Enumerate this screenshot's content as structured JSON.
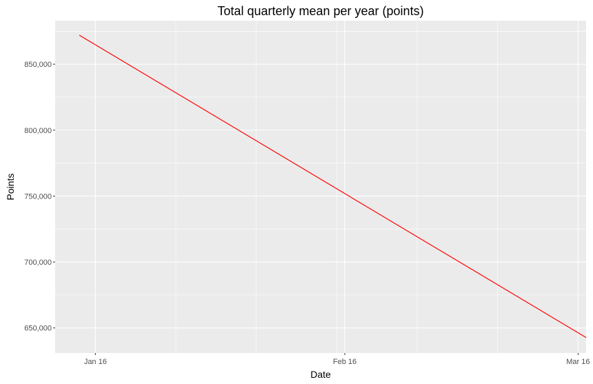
{
  "chart_data": {
    "type": "line",
    "title": "Total quarterly mean per year (points)",
    "xlabel": "Date",
    "ylabel": "Points",
    "x_ticks": [
      {
        "date": "2016-01-01",
        "label": "Jan 16"
      },
      {
        "date": "2016-02-01",
        "label": "Feb 16"
      },
      {
        "date": "2016-03-01",
        "label": "Mar 16"
      }
    ],
    "y_ticks": [
      {
        "value": 650000,
        "label": "650,000"
      },
      {
        "value": 700000,
        "label": "700,000"
      },
      {
        "value": 750000,
        "label": "750,000"
      },
      {
        "value": 800000,
        "label": "800,000"
      },
      {
        "value": 850000,
        "label": "850,000"
      }
    ],
    "xlim": [
      "2015-12-27",
      "2016-03-02"
    ],
    "ylim": [
      631000,
      883000
    ],
    "series": [
      {
        "color": "#ff0000",
        "points": [
          {
            "x": "2015-12-30",
            "y": 872000
          },
          {
            "x": "2016-03-02",
            "y": 642700
          }
        ]
      }
    ],
    "grid": true,
    "background": "#ebebeb",
    "gridline_color": "#ffffff"
  }
}
